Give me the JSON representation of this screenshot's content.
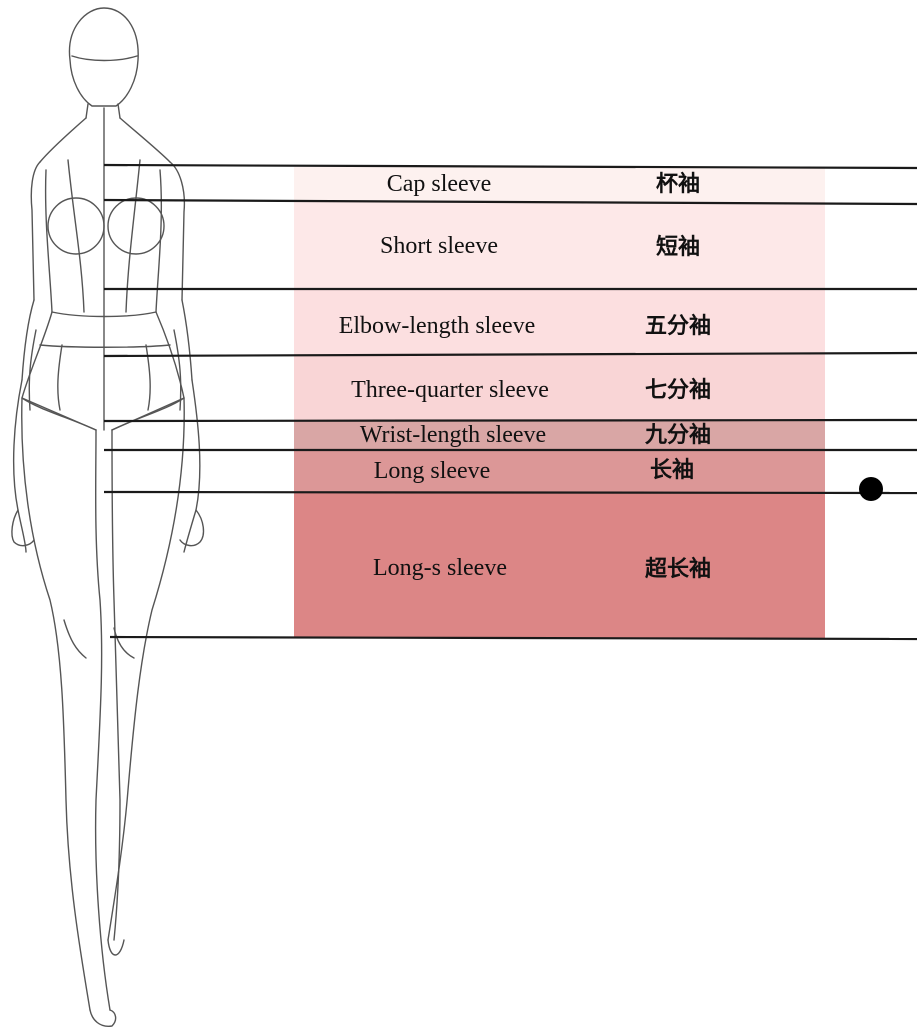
{
  "diagram": {
    "sleeves": [
      {
        "en": "Cap sleeve",
        "cn": "杯袖",
        "color": "#fdf1ef"
      },
      {
        "en": "Short sleeve",
        "cn": "短袖",
        "color": "#fde8e8"
      },
      {
        "en": "Elbow-length sleeve",
        "cn": "五分袖",
        "color": "#fcdfe0"
      },
      {
        "en": "Three-quarter sleeve",
        "cn": "七分袖",
        "color": "#f9d5d6"
      },
      {
        "en": "Wrist-length sleeve",
        "cn": "九分袖",
        "color": "#d9a6a5"
      },
      {
        "en": "Long sleeve",
        "cn": "长袖",
        "color": "#dc9797"
      },
      {
        "en": "Long-s sleeve",
        "cn": "超长袖",
        "color": "#dc8686"
      }
    ],
    "line_color": "#1a1a1a",
    "marker_color": "#000000"
  }
}
